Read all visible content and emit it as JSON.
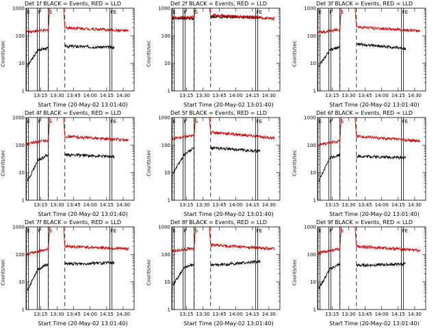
{
  "chart_data": [
    {
      "type": "line",
      "title": "Det 1f BLACK = Events, RED = LLD",
      "xlabel": "Start Time (20-May-02 13:01:40)",
      "ylabel": "Counts/sec",
      "y_scale": "log",
      "ylim": [
        1,
        1000
      ],
      "x_ticks": [
        "13:15",
        "13:30",
        "13:45",
        "14:00",
        "14:15",
        "14:30"
      ],
      "y_ticks": [
        "1",
        "10",
        "100",
        "1000"
      ],
      "markers": [
        {
          "label": "E",
          "time": "13:02"
        },
        {
          "label": "F",
          "time": "13:12"
        },
        {
          "label": "S",
          "time": "13:22"
        },
        {
          "label": "FE",
          "time": "14:18"
        }
      ],
      "dashed_times": [
        "13:22",
        "13:37"
      ],
      "series": [
        {
          "name": "Events",
          "color": "#000000",
          "segments": [
            {
              "from": "13:03",
              "to": "13:13",
              "start": 8,
              "end": 32
            },
            {
              "from": "13:13",
              "to": "13:22",
              "start": 32,
              "end": 35
            },
            {
              "from": "13:37",
              "to": "14:22",
              "start": 42,
              "end": 38
            }
          ]
        },
        {
          "name": "LLD",
          "color": "#cc0000",
          "segments": [
            {
              "from": "13:01",
              "to": "13:22",
              "start": 140,
              "end": 160
            },
            {
              "from": "13:37",
              "to": "14:35",
              "start": 200,
              "end": 150
            }
          ]
        }
      ]
    },
    {
      "type": "line",
      "title": "Det 2f BLACK = Events, RED = LLD",
      "xlabel": "Start Time (20-May-02 13:01:40)",
      "ylabel": "Counts/sec",
      "y_scale": "log",
      "ylim": [
        1,
        1000
      ],
      "x_ticks": [
        "13:15",
        "13:30",
        "13:45",
        "14:00",
        "14:15",
        "14:30"
      ],
      "y_ticks": [
        "1",
        "10",
        "100",
        "1000"
      ],
      "markers": [
        {
          "label": "E",
          "time": "13:02"
        },
        {
          "label": "F",
          "time": "13:12"
        },
        {
          "label": "S",
          "time": "13:22"
        },
        {
          "label": "FE",
          "time": "14:18"
        }
      ],
      "dashed_times": [
        "13:22",
        "13:37"
      ],
      "series": [
        {
          "name": "Events",
          "color": "#000000",
          "segments": [
            {
              "from": "13:02",
              "to": "13:22",
              "start": 420,
              "end": 430
            },
            {
              "from": "13:37",
              "to": "14:22",
              "start": 500,
              "end": 470
            }
          ]
        },
        {
          "name": "LLD",
          "color": "#cc0000",
          "segments": [
            {
              "from": "13:01",
              "to": "13:22",
              "start": 460,
              "end": 470
            },
            {
              "from": "13:37",
              "to": "14:35",
              "start": 560,
              "end": 420
            }
          ]
        }
      ]
    },
    {
      "type": "line",
      "title": "Det 3f BLACK = Events, RED = LLD",
      "xlabel": "Start Time (20-May-02 13:01:40)",
      "ylabel": "Counts/sec",
      "y_scale": "log",
      "ylim": [
        1,
        1000
      ],
      "x_ticks": [
        "13:15",
        "13:30",
        "13:45",
        "14:00",
        "14:15",
        "14:30"
      ],
      "y_ticks": [
        "1",
        "10",
        "100",
        "1000"
      ],
      "markers": [
        {
          "label": "E",
          "time": "13:02"
        },
        {
          "label": "F",
          "time": "13:12"
        },
        {
          "label": "S",
          "time": "13:22"
        },
        {
          "label": "FE",
          "time": "14:18"
        }
      ],
      "dashed_times": [
        "13:22",
        "13:37"
      ],
      "series": [
        {
          "name": "Events",
          "color": "#000000",
          "segments": [
            {
              "from": "13:03",
              "to": "13:13",
              "start": 8,
              "end": 30
            },
            {
              "from": "13:13",
              "to": "13:22",
              "start": 30,
              "end": 40
            },
            {
              "from": "13:37",
              "to": "14:22",
              "start": 50,
              "end": 35
            }
          ]
        },
        {
          "name": "LLD",
          "color": "#cc0000",
          "segments": [
            {
              "from": "13:01",
              "to": "13:22",
              "start": 130,
              "end": 170
            },
            {
              "from": "13:37",
              "to": "14:35",
              "start": 210,
              "end": 150
            }
          ]
        }
      ]
    },
    {
      "type": "line",
      "title": "Det 4f BLACK = Events, RED = LLD",
      "xlabel": "Start Time (20-May-02 13:01:40)",
      "ylabel": "Counts/sec",
      "y_scale": "log",
      "ylim": [
        1,
        1000
      ],
      "x_ticks": [
        "13:15",
        "13:30",
        "13:45",
        "14:00",
        "14:15",
        "14:30"
      ],
      "y_ticks": [
        "1",
        "10",
        "100",
        "1000"
      ],
      "markers": [
        {
          "label": "E",
          "time": "13:02"
        },
        {
          "label": "F",
          "time": "13:12"
        },
        {
          "label": "S",
          "time": "13:22"
        },
        {
          "label": "FE",
          "time": "14:18"
        }
      ],
      "dashed_times": [
        "13:22",
        "13:37"
      ],
      "series": [
        {
          "name": "Events",
          "color": "#000000",
          "segments": [
            {
              "from": "13:03",
              "to": "13:13",
              "start": 5,
              "end": 30
            },
            {
              "from": "13:13",
              "to": "13:22",
              "start": 30,
              "end": 45
            },
            {
              "from": "13:37",
              "to": "14:22",
              "start": 45,
              "end": 38
            }
          ]
        },
        {
          "name": "LLD",
          "color": "#cc0000",
          "segments": [
            {
              "from": "13:01",
              "to": "13:22",
              "start": 110,
              "end": 150
            },
            {
              "from": "13:37",
              "to": "14:35",
              "start": 210,
              "end": 150
            }
          ]
        }
      ]
    },
    {
      "type": "line",
      "title": "Det 5f BLACK = Events, RED = LLD",
      "xlabel": "Start Time (20-May-02 13:01:40)",
      "ylabel": "Counts/sec",
      "y_scale": "log",
      "ylim": [
        1,
        1000
      ],
      "x_ticks": [
        "13:15",
        "13:30",
        "13:45",
        "14:00",
        "14:15",
        "14:30"
      ],
      "y_ticks": [
        "1",
        "10",
        "100",
        "1000"
      ],
      "markers": [
        {
          "label": "E",
          "time": "13:02"
        },
        {
          "label": "F",
          "time": "13:12"
        },
        {
          "label": "S",
          "time": "13:22"
        },
        {
          "label": "FE",
          "time": "14:18"
        }
      ],
      "dashed_times": [
        "13:22",
        "13:37"
      ],
      "series": [
        {
          "name": "Events",
          "color": "#000000",
          "segments": [
            {
              "from": "13:03",
              "to": "13:13",
              "start": 10,
              "end": 45
            },
            {
              "from": "13:13",
              "to": "13:22",
              "start": 45,
              "end": 80
            },
            {
              "from": "13:37",
              "to": "14:22",
              "start": 80,
              "end": 60
            }
          ]
        },
        {
          "name": "LLD",
          "color": "#cc0000",
          "segments": [
            {
              "from": "13:01",
              "to": "13:22",
              "start": 170,
              "end": 220
            },
            {
              "from": "13:37",
              "to": "14:35",
              "start": 300,
              "end": 180
            }
          ]
        }
      ]
    },
    {
      "type": "line",
      "title": "Det 6f BLACK = Events, RED = LLD",
      "xlabel": "Start Time (20-May-02 13:01:40)",
      "ylabel": "Counts/sec",
      "y_scale": "log",
      "ylim": [
        1,
        1000
      ],
      "x_ticks": [
        "13:15",
        "13:30",
        "13:45",
        "14:00",
        "14:15",
        "14:30"
      ],
      "y_ticks": [
        "1",
        "10",
        "100",
        "1000"
      ],
      "markers": [
        {
          "label": "E",
          "time": "13:02"
        },
        {
          "label": "F",
          "time": "13:12"
        },
        {
          "label": "S",
          "time": "13:22"
        },
        {
          "label": "FE",
          "time": "14:18"
        }
      ],
      "dashed_times": [
        "13:22",
        "13:37"
      ],
      "series": [
        {
          "name": "Events",
          "color": "#000000",
          "segments": [
            {
              "from": "13:03",
              "to": "13:13",
              "start": 5,
              "end": 35
            },
            {
              "from": "13:13",
              "to": "13:22",
              "start": 35,
              "end": 45
            },
            {
              "from": "13:37",
              "to": "14:22",
              "start": 40,
              "end": 35
            }
          ]
        },
        {
          "name": "LLD",
          "color": "#cc0000",
          "segments": [
            {
              "from": "13:01",
              "to": "13:22",
              "start": 100,
              "end": 140
            },
            {
              "from": "13:37",
              "to": "14:35",
              "start": 210,
              "end": 140
            }
          ]
        }
      ]
    },
    {
      "type": "line",
      "title": "Det 7f BLACK = Events, RED = LLD",
      "xlabel": "Start Time (20-May-02 13:01:40)",
      "ylabel": "Counts/sec",
      "y_scale": "log",
      "ylim": [
        1,
        1000
      ],
      "x_ticks": [
        "13:15",
        "13:30",
        "13:45",
        "14:00",
        "14:15",
        "14:30"
      ],
      "y_ticks": [
        "1",
        "10",
        "100",
        "1000"
      ],
      "markers": [
        {
          "label": "E",
          "time": "13:02"
        },
        {
          "label": "F",
          "time": "13:12"
        },
        {
          "label": "S",
          "time": "13:22"
        },
        {
          "label": "FE",
          "time": "14:18"
        }
      ],
      "dashed_times": [
        "13:22",
        "13:37"
      ],
      "series": [
        {
          "name": "Events",
          "color": "#000000",
          "segments": [
            {
              "from": "13:03",
              "to": "13:13",
              "start": 5,
              "end": 30
            },
            {
              "from": "13:13",
              "to": "13:22",
              "start": 30,
              "end": 45
            },
            {
              "from": "13:37",
              "to": "14:22",
              "start": 45,
              "end": 50
            }
          ]
        },
        {
          "name": "LLD",
          "color": "#cc0000",
          "segments": [
            {
              "from": "13:01",
              "to": "13:22",
              "start": 100,
              "end": 160
            },
            {
              "from": "13:37",
              "to": "14:35",
              "start": 200,
              "end": 160
            }
          ]
        }
      ]
    },
    {
      "type": "line",
      "title": "Det 8f BLACK = Events, RED = LLD",
      "xlabel": "Start Time (20-May-02 13:01:40)",
      "ylabel": "Counts/sec",
      "y_scale": "log",
      "ylim": [
        1,
        1000
      ],
      "x_ticks": [
        "13:15",
        "13:30",
        "13:45",
        "14:00",
        "14:15",
        "14:30"
      ],
      "y_ticks": [
        "1",
        "10",
        "100",
        "1000"
      ],
      "markers": [
        {
          "label": "E",
          "time": "13:02"
        },
        {
          "label": "F",
          "time": "13:12"
        },
        {
          "label": "S",
          "time": "13:22"
        },
        {
          "label": "FE",
          "time": "14:18"
        }
      ],
      "dashed_times": [
        "13:22",
        "13:37"
      ],
      "series": [
        {
          "name": "Events",
          "color": "#000000",
          "segments": [
            {
              "from": "13:03",
              "to": "13:13",
              "start": 8,
              "end": 35
            },
            {
              "from": "13:13",
              "to": "13:22",
              "start": 35,
              "end": 45
            },
            {
              "from": "13:37",
              "to": "14:22",
              "start": 40,
              "end": 55
            }
          ]
        },
        {
          "name": "LLD",
          "color": "#cc0000",
          "segments": [
            {
              "from": "13:01",
              "to": "13:22",
              "start": 130,
              "end": 170
            },
            {
              "from": "13:37",
              "to": "14:35",
              "start": 220,
              "end": 160
            }
          ]
        }
      ]
    },
    {
      "type": "line",
      "title": "Det 9f BLACK = Events, RED = LLD",
      "xlabel": "Start Time (20-May-02 13:01:40)",
      "ylabel": "Counts/sec",
      "y_scale": "log",
      "ylim": [
        1,
        1000
      ],
      "x_ticks": [
        "13:15",
        "13:30",
        "13:45",
        "14:00",
        "14:15",
        "14:30"
      ],
      "y_ticks": [
        "1",
        "10",
        "100",
        "1000"
      ],
      "markers": [
        {
          "label": "E",
          "time": "13:02"
        },
        {
          "label": "F",
          "time": "13:12"
        },
        {
          "label": "S",
          "time": "13:22"
        },
        {
          "label": "FE",
          "time": "14:18"
        }
      ],
      "dashed_times": [
        "13:22",
        "13:37"
      ],
      "series": [
        {
          "name": "Events",
          "color": "#000000",
          "segments": [
            {
              "from": "13:03",
              "to": "13:13",
              "start": 6,
              "end": 30
            },
            {
              "from": "13:13",
              "to": "13:22",
              "start": 30,
              "end": 45
            },
            {
              "from": "13:37",
              "to": "14:22",
              "start": 40,
              "end": 45
            }
          ]
        },
        {
          "name": "LLD",
          "color": "#cc0000",
          "segments": [
            {
              "from": "13:01",
              "to": "13:22",
              "start": 110,
              "end": 160
            },
            {
              "from": "13:37",
              "to": "14:35",
              "start": 200,
              "end": 140
            }
          ]
        }
      ]
    }
  ]
}
